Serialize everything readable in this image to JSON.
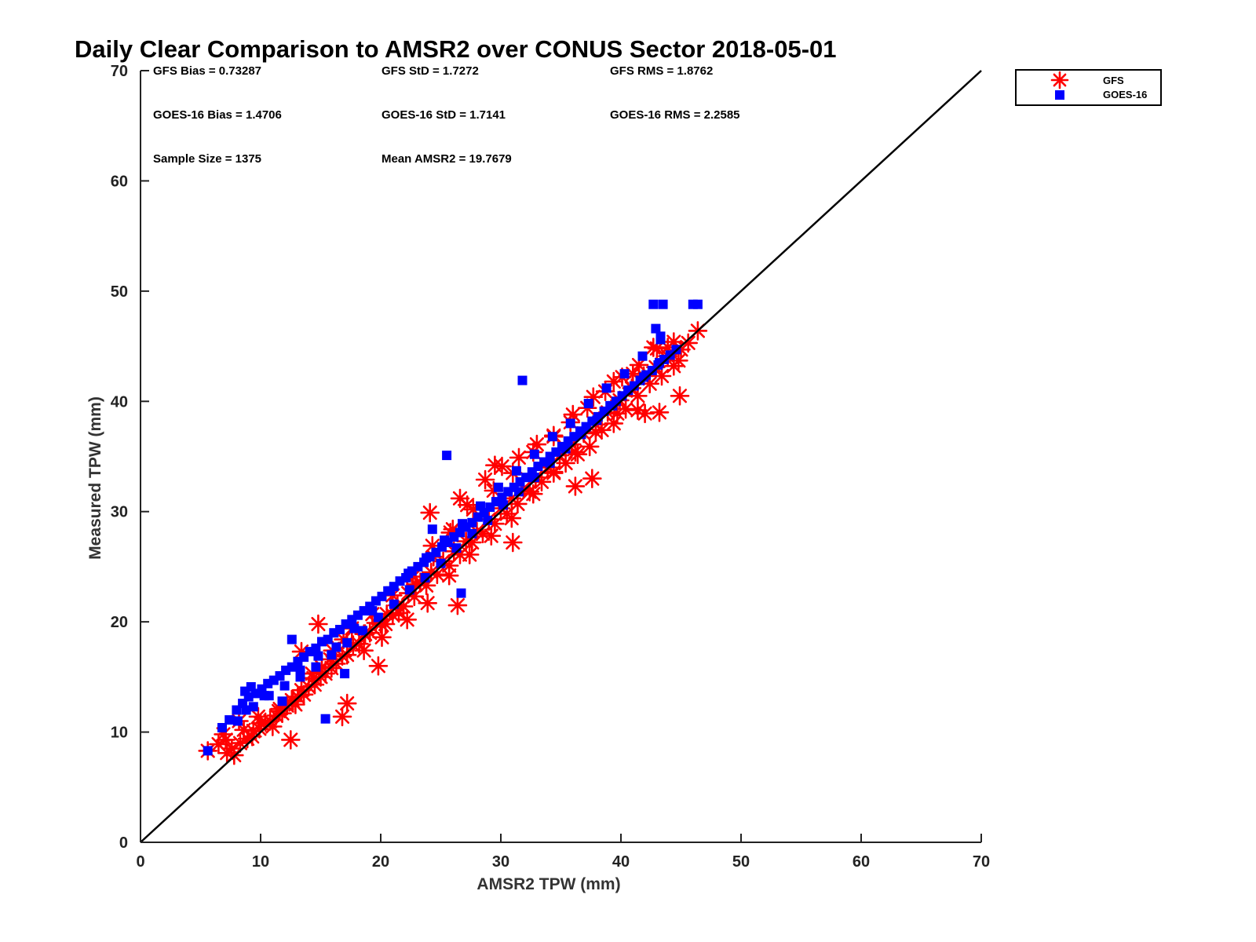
{
  "chart_data": {
    "type": "scatter",
    "title": "Daily Clear Comparison to AMSR2 over CONUS Sector 2018-05-01",
    "xlabel": "AMSR2 TPW (mm)",
    "ylabel": "Measured TPW (mm)",
    "xlim": [
      0,
      70
    ],
    "ylim": [
      0,
      70
    ],
    "xticks": [
      "0",
      "10",
      "20",
      "30",
      "40",
      "50",
      "60",
      "70"
    ],
    "yticks": [
      "0",
      "10",
      "20",
      "30",
      "40",
      "50",
      "60",
      "70"
    ],
    "grid": false,
    "legend_position": "outside-top-right",
    "reference_line": {
      "x": [
        0,
        70
      ],
      "y": [
        0,
        70
      ],
      "color": "#000000"
    },
    "stats": [
      "GFS Bias = 0.73287",
      "GFS StD = 1.7272",
      "GFS RMS = 1.8762",
      "GOES-16 Bias = 1.4706",
      "GOES-16 StD = 1.7141",
      "GOES-16 RMS = 2.2585",
      "Sample Size = 1375",
      "Mean AMSR2 = 19.7679"
    ],
    "series": [
      {
        "name": "GFS",
        "marker": "asterisk",
        "color": "#ff0000",
        "x": [
          5.6,
          6.5,
          7.2,
          7.8,
          8.3,
          8.9,
          9.4,
          9.9,
          10.4,
          10.8,
          11.3,
          11.8,
          12.2,
          12.7,
          13.1,
          13.6,
          14.0,
          14.5,
          15.0,
          15.4,
          15.9,
          16.3,
          16.8,
          17.2,
          17.7,
          18.2,
          18.6,
          19.1,
          19.6,
          20.0,
          20.5,
          21.0,
          21.4,
          21.9,
          22.3,
          22.8,
          23.3,
          23.8,
          24.2,
          24.7,
          25.2,
          25.7,
          26.1,
          26.6,
          27.1,
          27.6,
          28.0,
          28.5,
          29.0,
          29.5,
          30.0,
          30.5,
          30.9,
          31.4,
          31.9,
          32.4,
          32.9,
          33.4,
          33.9,
          34.4,
          34.9,
          35.4,
          35.9,
          36.4,
          36.9,
          37.4,
          37.9,
          38.4,
          38.9,
          39.4,
          39.9,
          40.4,
          40.9,
          41.4,
          41.9,
          42.4,
          42.9,
          43.4,
          43.9,
          44.4,
          45.0,
          45.6,
          46.4,
          7.1,
          8.6,
          10.0,
          11.5,
          12.9,
          14.4,
          15.8,
          17.2,
          18.6,
          20.1,
          21.5,
          22.9,
          24.4,
          25.8,
          27.2,
          28.7,
          30.1,
          31.5,
          33.0,
          34.4,
          35.8,
          37.2,
          38.7,
          40.1,
          41.5,
          43.0,
          44.4,
          7.6,
          9.3,
          11.0,
          12.6,
          14.3,
          16.0,
          17.6,
          19.3,
          21.0,
          22.7,
          24.3,
          26.0,
          27.7,
          29.4,
          31.0,
          32.7,
          34.4,
          36.0,
          37.7,
          39.4,
          41.0,
          42.7,
          6.9,
          8.2,
          9.8,
          11.6,
          13.4,
          15.1,
          16.9,
          18.7,
          20.4,
          22.2,
          23.9,
          25.7,
          27.4,
          29.2,
          30.9,
          32.7,
          34.4,
          36.2,
          37.9,
          39.7,
          41.4,
          43.2,
          44.9,
          12.5,
          16.8,
          24.1,
          26.4,
          31.0,
          36.2,
          42.0,
          44.8,
          13.4,
          17.2,
          19.8,
          26.6,
          29.5,
          37.6,
          43.9,
          14.8
        ],
        "y": [
          8.3,
          8.9,
          8.1,
          7.9,
          9.0,
          9.4,
          10.1,
          10.3,
          10.9,
          11.0,
          11.5,
          11.7,
          12.4,
          12.8,
          13.2,
          13.4,
          14.1,
          14.3,
          15.0,
          15.3,
          15.8,
          16.2,
          16.9,
          17.0,
          17.9,
          18.0,
          18.9,
          19.0,
          19.9,
          19.8,
          20.7,
          20.6,
          21.5,
          21.4,
          22.6,
          22.3,
          23.6,
          23.3,
          24.5,
          24.3,
          25.5,
          25.1,
          26.4,
          26.1,
          27.3,
          27.2,
          28.2,
          28.0,
          29.3,
          28.9,
          30.3,
          29.8,
          31.2,
          30.7,
          32.1,
          31.8,
          33.1,
          32.7,
          34.0,
          33.6,
          35.1,
          34.4,
          36.1,
          35.2,
          37.1,
          35.9,
          37.9,
          37.4,
          39.0,
          38.0,
          40.1,
          39.3,
          41.2,
          40.5,
          42.3,
          41.6,
          43.1,
          42.3,
          44.1,
          43.2,
          44.7,
          45.3,
          46.4,
          9.3,
          10.2,
          10.8,
          11.9,
          12.5,
          14.9,
          16.6,
          18.1,
          17.4,
          18.6,
          20.8,
          23.4,
          25.9,
          28.1,
          30.6,
          32.9,
          34.1,
          34.9,
          36.1,
          36.8,
          38.1,
          39.4,
          40.9,
          42.2,
          43.3,
          44.8,
          45.4,
          8.5,
          9.6,
          10.5,
          12.9,
          15.3,
          17.4,
          19.4,
          20.7,
          22.4,
          24.1,
          26.9,
          28.4,
          30.2,
          31.9,
          33.5,
          35.4,
          36.9,
          38.8,
          40.4,
          41.8,
          42.5,
          44.9,
          9.8,
          11.0,
          11.4,
          12.1,
          13.8,
          15.9,
          18.4,
          18.9,
          19.8,
          20.2,
          21.7,
          24.2,
          26.1,
          27.8,
          29.4,
          31.6,
          33.5,
          35.4,
          37.2,
          38.9,
          39.2,
          39.0,
          40.5,
          9.3,
          11.4,
          29.9,
          21.5,
          27.2,
          32.3,
          38.9,
          43.7,
          17.3,
          12.6,
          16.0,
          31.2,
          34.2,
          33.0,
          44.9,
          19.8
        ]
      },
      {
        "name": "GOES-16",
        "marker": "square",
        "color": "#0000ff",
        "x": [
          5.6,
          6.8,
          7.4,
          8.0,
          8.5,
          9.0,
          9.6,
          10.1,
          10.6,
          11.1,
          11.6,
          12.1,
          12.6,
          13.1,
          13.6,
          14.1,
          14.6,
          15.1,
          15.6,
          16.1,
          16.6,
          17.1,
          17.6,
          18.1,
          18.6,
          19.1,
          19.6,
          20.1,
          20.6,
          21.1,
          21.6,
          22.1,
          22.6,
          23.1,
          23.6,
          24.1,
          24.6,
          25.1,
          25.6,
          26.1,
          26.6,
          27.1,
          27.6,
          28.1,
          28.6,
          29.1,
          29.6,
          30.1,
          30.6,
          31.1,
          31.6,
          32.1,
          32.6,
          33.1,
          33.6,
          34.1,
          34.6,
          35.1,
          35.6,
          36.1,
          36.6,
          37.1,
          37.6,
          38.1,
          38.6,
          39.1,
          39.6,
          40.1,
          40.6,
          41.1,
          41.6,
          42.1,
          42.6,
          43.1,
          43.6,
          44.1,
          44.6,
          8.1,
          9.4,
          10.7,
          12.0,
          13.3,
          14.6,
          15.9,
          17.2,
          18.5,
          19.8,
          21.1,
          22.4,
          23.7,
          25.0,
          26.3,
          27.6,
          28.9,
          30.2,
          31.5,
          32.8,
          34.1,
          35.4,
          36.7,
          38.0,
          39.3,
          40.6,
          41.9,
          43.2,
          8.8,
          10.3,
          11.8,
          13.3,
          14.8,
          16.3,
          17.8,
          19.3,
          20.8,
          22.3,
          23.8,
          25.3,
          26.8,
          28.3,
          29.8,
          31.3,
          32.8,
          34.3,
          35.8,
          37.3,
          38.8,
          40.3,
          41.8,
          43.3,
          15.4,
          25.5,
          31.8,
          26.7,
          42.7,
          43.5,
          46.0,
          46.4,
          12.6,
          9.2,
          8.7,
          17.0,
          24.3,
          42.9,
          43.3
        ],
        "y": [
          8.3,
          10.4,
          11.1,
          12.0,
          12.6,
          13.2,
          13.5,
          13.9,
          14.4,
          14.7,
          15.1,
          15.6,
          15.9,
          16.4,
          16.8,
          17.3,
          17.6,
          18.2,
          18.4,
          19.0,
          19.3,
          19.8,
          20.2,
          20.6,
          21.0,
          21.4,
          21.9,
          22.3,
          22.8,
          23.2,
          23.7,
          24.0,
          24.6,
          25.0,
          25.4,
          25.9,
          26.3,
          26.8,
          27.2,
          27.7,
          28.1,
          28.6,
          29.0,
          29.5,
          29.9,
          30.4,
          30.9,
          31.3,
          31.8,
          32.2,
          32.7,
          33.1,
          33.6,
          34.1,
          34.5,
          35.0,
          35.4,
          35.9,
          36.4,
          36.8,
          37.3,
          37.7,
          38.2,
          38.6,
          39.1,
          39.6,
          40.0,
          40.5,
          41.0,
          41.4,
          41.9,
          42.4,
          42.8,
          43.3,
          43.8,
          44.2,
          44.7,
          11.0,
          12.3,
          13.3,
          14.2,
          15.0,
          15.9,
          17.0,
          18.1,
          19.2,
          20.4,
          21.6,
          22.9,
          24.0,
          25.3,
          26.7,
          28.0,
          29.2,
          30.6,
          31.8,
          33.1,
          34.4,
          35.7,
          37.0,
          38.3,
          39.6,
          41.0,
          42.2,
          43.5,
          12.0,
          13.3,
          12.8,
          15.6,
          16.9,
          17.7,
          19.4,
          21.0,
          22.8,
          24.4,
          25.8,
          27.4,
          28.9,
          30.5,
          32.2,
          33.7,
          35.2,
          36.8,
          38.0,
          39.8,
          41.2,
          42.5,
          44.1,
          45.6,
          11.2,
          35.1,
          41.9,
          22.6,
          48.8,
          48.8,
          48.8,
          48.8,
          18.4,
          14.1,
          13.7,
          15.3,
          28.4,
          46.6,
          45.9
        ]
      }
    ]
  }
}
